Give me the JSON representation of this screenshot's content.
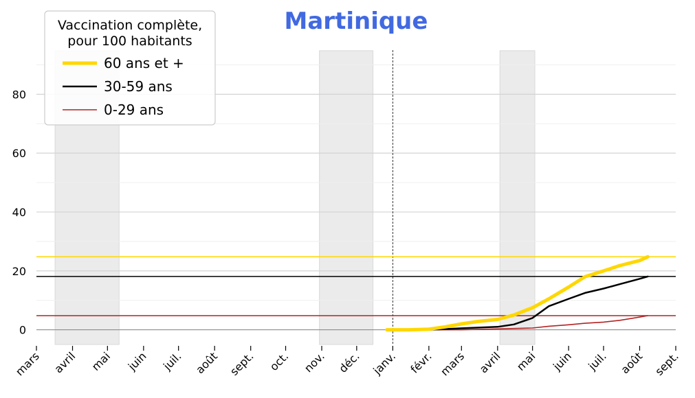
{
  "chart_data": {
    "type": "line",
    "title": "Martinique",
    "legend": {
      "title_lines": [
        "Vaccination complète,",
        "pour 100 habitants"
      ],
      "placement": "top-left"
    },
    "x_tick_labels": [
      "mars",
      "avril",
      "mai",
      "juin",
      "juil.",
      "août",
      "sept.",
      "oct.",
      "nov.",
      "déc.",
      "janv.",
      "févr.",
      "mars",
      "avril",
      "mai",
      "juin",
      "juil.",
      "août",
      "sept."
    ],
    "x_ticks": [
      "2020-03-01",
      "2020-04-01",
      "2020-05-01",
      "2020-06-01",
      "2020-07-01",
      "2020-08-01",
      "2020-09-01",
      "2020-10-01",
      "2020-11-01",
      "2020-12-01",
      "2021-01-01",
      "2021-02-01",
      "2021-03-01",
      "2021-04-01",
      "2021-05-01",
      "2021-06-01",
      "2021-07-01",
      "2021-08-01",
      "2021-09-01"
    ],
    "xlim": [
      "2020-03-01",
      "2021-09-01"
    ],
    "ylim": [
      -5,
      95
    ],
    "y_ticks": [
      0,
      20,
      40,
      60,
      80
    ],
    "y_tick_labels": [
      "0",
      "20",
      "40",
      "60",
      "80"
    ],
    "y_grid_major": [
      0,
      20,
      40,
      60,
      80
    ],
    "y_grid_minor": [
      10,
      30,
      50,
      70,
      90
    ],
    "grid": true,
    "shaded_periods": [
      {
        "start": "2020-03-17",
        "end": "2020-05-11"
      },
      {
        "start": "2020-10-30",
        "end": "2020-12-15"
      },
      {
        "start": "2021-04-03",
        "end": "2021-05-03"
      }
    ],
    "vertical_marker": "2021-01-01",
    "series": [
      {
        "name": "60 ans et +",
        "color": "#ffd700",
        "reference_level": 24.8,
        "x": [
          "2020-12-27",
          "2021-01-15",
          "2021-02-01",
          "2021-02-15",
          "2021-03-01",
          "2021-03-15",
          "2021-04-01",
          "2021-04-15",
          "2021-05-01",
          "2021-05-15",
          "2021-06-01",
          "2021-06-15",
          "2021-07-01",
          "2021-07-15",
          "2021-08-01",
          "2021-08-08"
        ],
        "values": [
          0.0,
          0.0,
          0.2,
          1.0,
          2.0,
          2.8,
          3.5,
          5.0,
          7.5,
          10.5,
          14.5,
          18.0,
          20.0,
          21.8,
          23.5,
          24.8
        ]
      },
      {
        "name": "30-59 ans",
        "color": "#000000",
        "reference_level": 18.1,
        "x": [
          "2020-12-27",
          "2021-02-01",
          "2021-03-01",
          "2021-04-01",
          "2021-04-15",
          "2021-05-01",
          "2021-05-15",
          "2021-06-01",
          "2021-06-15",
          "2021-07-01",
          "2021-07-15",
          "2021-08-01",
          "2021-08-08"
        ],
        "values": [
          0.0,
          0.0,
          0.5,
          1.0,
          1.8,
          4.0,
          8.0,
          10.5,
          12.5,
          14.0,
          15.5,
          17.3,
          18.1
        ]
      },
      {
        "name": "0-29 ans",
        "color": "#b22222",
        "reference_level": 4.8,
        "x": [
          "2020-12-27",
          "2021-03-01",
          "2021-04-01",
          "2021-05-01",
          "2021-05-15",
          "2021-06-01",
          "2021-06-15",
          "2021-07-01",
          "2021-07-15",
          "2021-08-01",
          "2021-08-08"
        ],
        "values": [
          0.0,
          0.0,
          0.3,
          0.6,
          1.2,
          1.7,
          2.2,
          2.6,
          3.2,
          4.3,
          4.8
        ]
      }
    ]
  }
}
